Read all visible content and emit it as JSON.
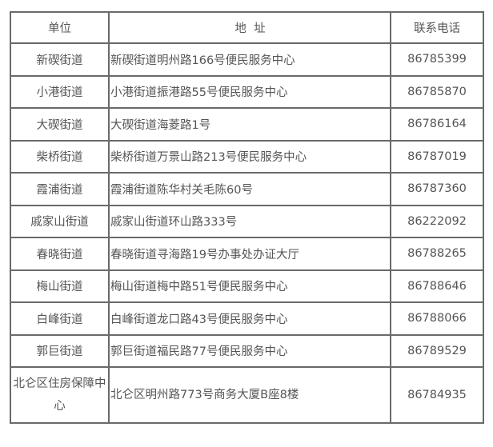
{
  "headers": {
    "unit": "单位",
    "address": "地  址",
    "phone": "联系电话"
  },
  "rows": [
    {
      "unit": "新碶街道",
      "address": "新碶街道明州路166号便民服务中心",
      "phone": "86785399"
    },
    {
      "unit": "小港街道",
      "address": "小港街道振港路55号便民服务中心",
      "phone": "86785870"
    },
    {
      "unit": "大碶街道",
      "address": "大碶街道海菱路1号",
      "phone": "86786164"
    },
    {
      "unit": "柴桥街道",
      "address": "柴桥街道万景山路213号便民服务中心",
      "phone": "86787019"
    },
    {
      "unit": "霞浦街道",
      "address": "霞浦街道陈华村关毛陈60号",
      "phone": "86787360"
    },
    {
      "unit": "戚家山街道",
      "address": "戚家山街道环山路333号",
      "phone": "86222092"
    },
    {
      "unit": "春晓街道",
      "address": "春晓街道寻海路19号办事处办证大厅",
      "phone": "86788265"
    },
    {
      "unit": "梅山街道",
      "address": "梅山街道梅中路51号便民服务中心",
      "phone": "86788646"
    },
    {
      "unit": "白峰街道",
      "address": "白峰街道龙口路43号便民服务中心",
      "phone": "86788066"
    },
    {
      "unit": "郭巨街道",
      "address": "郭巨街道福民路77号便民服务中心",
      "phone": "86789529"
    },
    {
      "unit": "北仑区住房保障中心",
      "address": "北仑区明州路773号商务大厦B座8楼",
      "phone": "86784935"
    }
  ]
}
